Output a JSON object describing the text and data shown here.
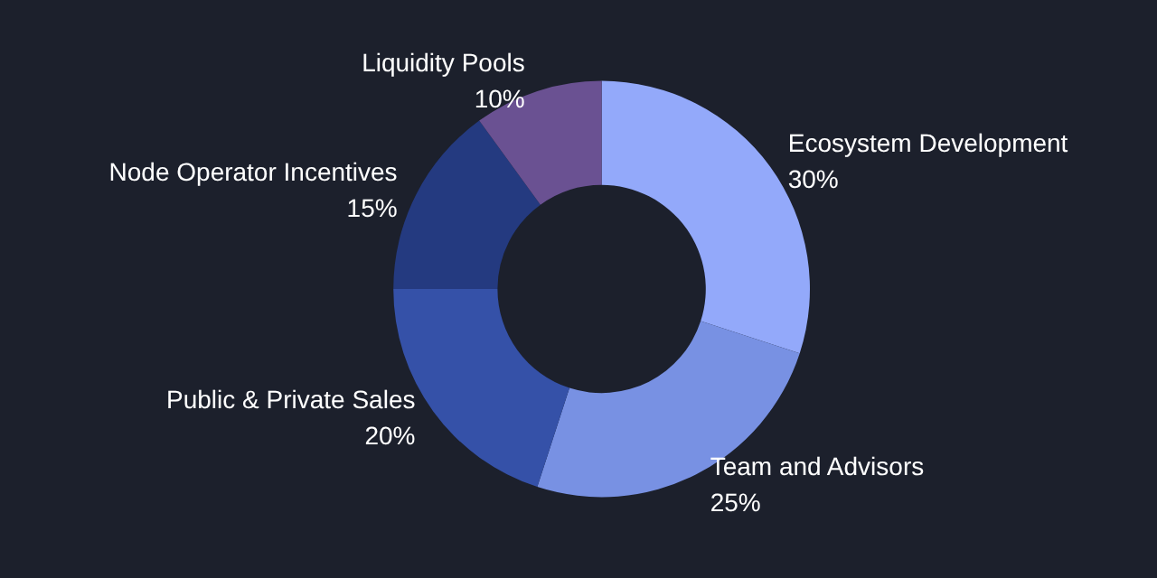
{
  "chart_data": {
    "type": "donut",
    "categories": [
      "Ecosystem Development",
      "Team and Advisors",
      "Public & Private Sales",
      "Node Operator Incentives",
      "Liquidity Pools"
    ],
    "values": [
      30,
      25,
      20,
      15,
      10
    ],
    "colors": [
      "#93a9fa",
      "#7891e3",
      "#3551a8",
      "#243a80",
      "#6a5192"
    ],
    "value_labels": [
      "30%",
      "25%",
      "20%",
      "15%",
      "10%"
    ],
    "legend": false
  }
}
